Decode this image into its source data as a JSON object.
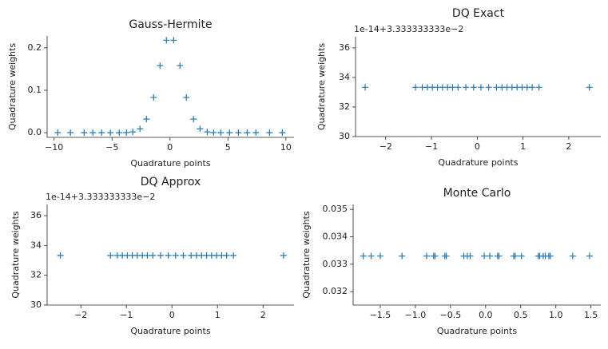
{
  "chart_data": [
    {
      "type": "scatter",
      "title": "Gauss-Hermite",
      "xlabel": "Quadrature points",
      "ylabel": "Quadrature weights",
      "color": "#1f77b4",
      "x": [
        -9.69,
        -8.59,
        -7.41,
        -6.66,
        -5.9,
        -5.14,
        -4.38,
        -3.76,
        -3.21,
        -2.59,
        -2.03,
        -1.41,
        -0.86,
        -0.31,
        0.31,
        0.86,
        1.41,
        2.03,
        2.59,
        3.21,
        3.76,
        4.38,
        5.14,
        5.9,
        6.66,
        7.41,
        8.59,
        9.69
      ],
      "values": [
        0,
        0,
        0,
        0,
        0,
        0,
        0,
        0.0003,
        0.002,
        0.009,
        0.032,
        0.083,
        0.158,
        0.218,
        0.218,
        0.158,
        0.083,
        0.032,
        0.009,
        0.002,
        0.0003,
        0,
        0,
        0,
        0,
        0,
        0,
        0
      ],
      "xlim": [
        -10.6,
        10.7
      ],
      "xticks": [
        {
          "value": -10,
          "label": "−10"
        },
        {
          "value": -5,
          "label": "−5"
        },
        0,
        5,
        10
      ],
      "ylim": [
        -0.011,
        0.228
      ],
      "yticks": [
        {
          "value": 0,
          "label": "0.0"
        },
        0.1,
        0.2
      ]
    },
    {
      "type": "scatter",
      "title": "DQ Exact",
      "xlabel": "Quadrature points",
      "ylabel": "Quadrature weights",
      "color": "#1f77b4",
      "y_offset_text": "1e-14+3.333333333e−2",
      "x": [
        -2.45,
        -1.35,
        -1.2,
        -1.09,
        -0.98,
        -0.87,
        -0.76,
        -0.65,
        -0.54,
        -0.42,
        -0.25,
        -0.08,
        0.08,
        0.25,
        0.42,
        0.54,
        0.65,
        0.76,
        0.87,
        0.98,
        1.09,
        1.2,
        1.35,
        2.45
      ],
      "values": [
        33.33,
        33.33,
        33.33,
        33.33,
        33.33,
        33.33,
        33.33,
        33.33,
        33.33,
        33.33,
        33.33,
        33.33,
        33.33,
        33.33,
        33.33,
        33.33,
        33.33,
        33.33,
        33.33,
        33.33,
        33.33,
        33.33,
        33.33,
        33.33
      ],
      "xlim": [
        -2.66,
        2.7
      ],
      "xticks": [
        {
          "value": -2,
          "label": "−2"
        },
        {
          "value": -1,
          "label": "−1"
        },
        0,
        1,
        2
      ],
      "ylim": [
        30,
        36.75
      ],
      "yticks": [
        30,
        32,
        34,
        36
      ]
    },
    {
      "type": "scatter",
      "title": "DQ Approx",
      "xlabel": "Quadrature points",
      "ylabel": "Quadrature weights",
      "color": "#1f77b4",
      "y_offset_text": "1e-14+3.333333333e−2",
      "x": [
        -2.45,
        -1.35,
        -1.2,
        -1.09,
        -0.98,
        -0.87,
        -0.76,
        -0.65,
        -0.54,
        -0.42,
        -0.25,
        -0.08,
        0.08,
        0.25,
        0.42,
        0.54,
        0.65,
        0.76,
        0.87,
        0.98,
        1.09,
        1.2,
        1.35,
        2.45
      ],
      "values": [
        33.33,
        33.33,
        33.33,
        33.33,
        33.33,
        33.33,
        33.33,
        33.33,
        33.33,
        33.33,
        33.33,
        33.33,
        33.33,
        33.33,
        33.33,
        33.33,
        33.33,
        33.33,
        33.33,
        33.33,
        33.33,
        33.33,
        33.33,
        33.33
      ],
      "xlim": [
        -2.74,
        2.68
      ],
      "xticks": [
        {
          "value": -2,
          "label": "−2"
        },
        {
          "value": -1,
          "label": "−1"
        },
        0,
        1,
        2
      ],
      "ylim": [
        30,
        36.75
      ],
      "yticks": [
        30,
        32,
        34,
        36
      ]
    },
    {
      "type": "scatter",
      "title": "Monte Carlo",
      "xlabel": "Quadrature points",
      "ylabel": "Quadrature weights",
      "color": "#1f77b4",
      "x": [
        -1.74,
        -1.63,
        -1.5,
        -1.19,
        -0.84,
        -0.74,
        -0.72,
        -0.58,
        -0.56,
        -0.31,
        -0.26,
        -0.22,
        -0.02,
        0.06,
        0.17,
        0.19,
        0.4,
        0.42,
        0.51,
        0.75,
        0.77,
        0.82,
        0.85,
        0.9,
        0.92,
        1.24,
        1.48
      ],
      "values": [
        0.0333,
        0.0333,
        0.0333,
        0.0333,
        0.0333,
        0.0333,
        0.0333,
        0.0333,
        0.0333,
        0.0333,
        0.0333,
        0.0333,
        0.0333,
        0.0333,
        0.0333,
        0.0333,
        0.0333,
        0.0333,
        0.0333,
        0.0333,
        0.0333,
        0.0333,
        0.0333,
        0.0333,
        0.0333,
        0.0333,
        0.0333
      ],
      "xlim": [
        -1.886,
        1.64
      ],
      "xticks": [
        {
          "value": -1.5,
          "label": "−1.5"
        },
        {
          "value": -1,
          "label": "−1.0"
        },
        {
          "value": -0.5,
          "label": "−0.5"
        },
        {
          "value": 0,
          "label": "0.0"
        },
        0.5,
        {
          "value": 1,
          "label": "1.0"
        },
        1.5
      ],
      "ylim": [
        0.03151,
        0.03518
      ],
      "yticks": [
        0.032,
        0.033,
        0.034,
        0.035
      ]
    }
  ]
}
